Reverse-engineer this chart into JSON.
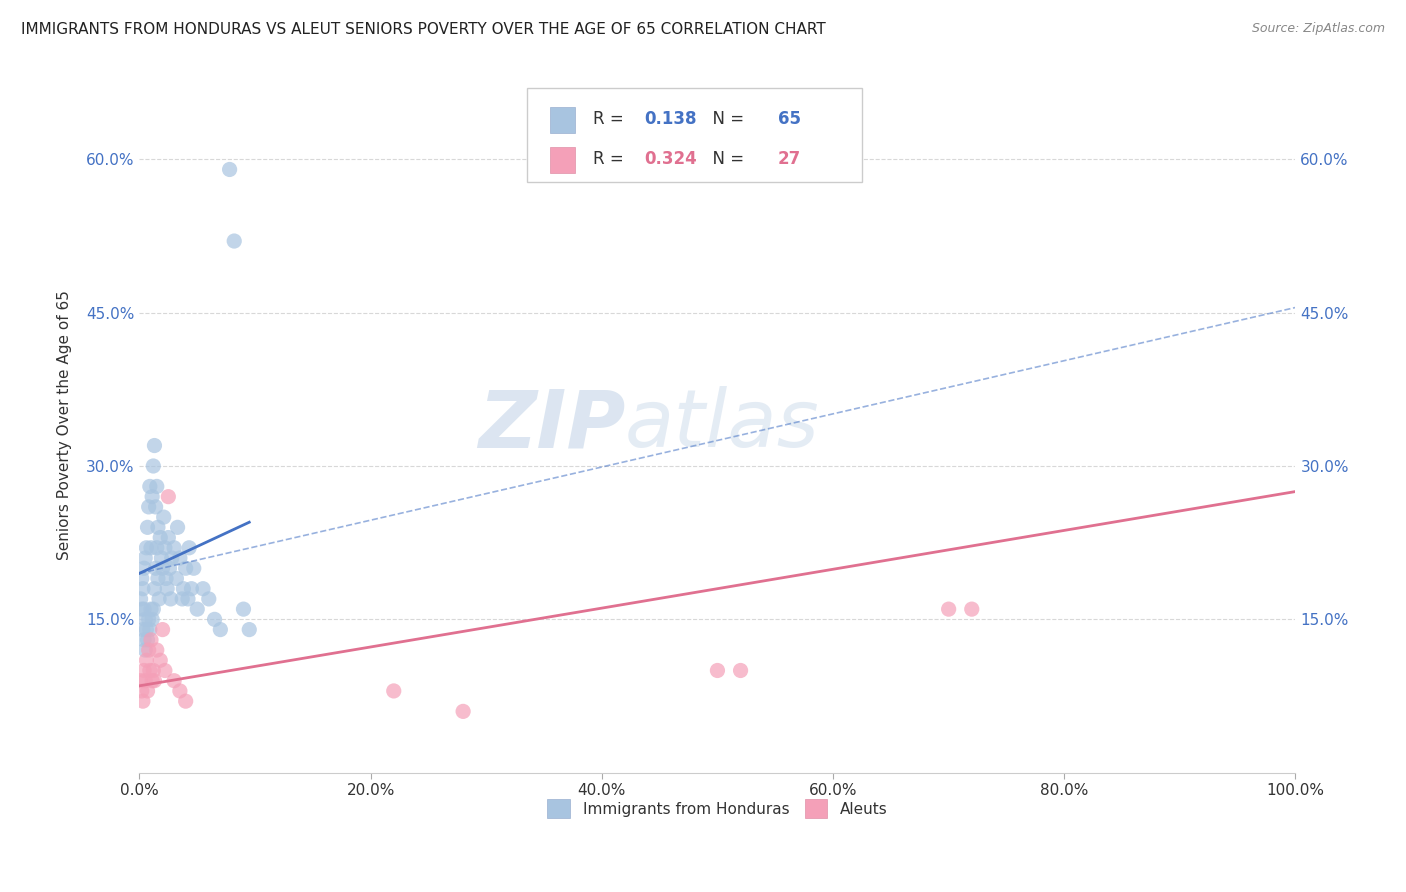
{
  "title": "IMMIGRANTS FROM HONDURAS VS ALEUT SENIORS POVERTY OVER THE AGE OF 65 CORRELATION CHART",
  "source": "Source: ZipAtlas.com",
  "ylabel": "Seniors Poverty Over the Age of 65",
  "xlim": [
    0,
    1.0
  ],
  "ylim": [
    0,
    0.68
  ],
  "xticks": [
    0.0,
    0.2,
    0.4,
    0.6,
    0.8,
    1.0
  ],
  "xticklabels": [
    "0.0%",
    "20.0%",
    "40.0%",
    "60.0%",
    "80.0%",
    "100.0%"
  ],
  "ytick_positions": [
    0.15,
    0.3,
    0.45,
    0.6
  ],
  "ytick_labels": [
    "15.0%",
    "30.0%",
    "45.0%",
    "60.0%"
  ],
  "legend_label1": "Immigrants from Honduras",
  "legend_label2": "Aleuts",
  "r1": "0.138",
  "n1": "65",
  "r2": "0.324",
  "n2": "27",
  "color1": "#a8c4e0",
  "color2": "#f4a0b8",
  "line_color1": "#4472c4",
  "line_color2": "#e07090",
  "watermark_zip": "ZIP",
  "watermark_atlas": "atlas",
  "scatter1_x": [
    0.001,
    0.002,
    0.002,
    0.003,
    0.003,
    0.004,
    0.004,
    0.004,
    0.005,
    0.005,
    0.005,
    0.006,
    0.006,
    0.007,
    0.007,
    0.008,
    0.008,
    0.009,
    0.009,
    0.01,
    0.01,
    0.011,
    0.011,
    0.012,
    0.012,
    0.013,
    0.013,
    0.014,
    0.014,
    0.015,
    0.015,
    0.016,
    0.016,
    0.017,
    0.018,
    0.019,
    0.02,
    0.021,
    0.022,
    0.023,
    0.024,
    0.025,
    0.026,
    0.027,
    0.028,
    0.03,
    0.032,
    0.033,
    0.035,
    0.037,
    0.038,
    0.04,
    0.042,
    0.043,
    0.045,
    0.047,
    0.05,
    0.055,
    0.06,
    0.065,
    0.07,
    0.078,
    0.082,
    0.09,
    0.095
  ],
  "scatter1_y": [
    0.17,
    0.16,
    0.19,
    0.14,
    0.18,
    0.13,
    0.16,
    0.2,
    0.12,
    0.15,
    0.21,
    0.14,
    0.22,
    0.13,
    0.24,
    0.15,
    0.26,
    0.14,
    0.28,
    0.16,
    0.22,
    0.15,
    0.27,
    0.16,
    0.3,
    0.18,
    0.32,
    0.2,
    0.26,
    0.22,
    0.28,
    0.19,
    0.24,
    0.17,
    0.23,
    0.21,
    0.2,
    0.25,
    0.22,
    0.19,
    0.18,
    0.23,
    0.2,
    0.17,
    0.21,
    0.22,
    0.19,
    0.24,
    0.21,
    0.17,
    0.18,
    0.2,
    0.17,
    0.22,
    0.18,
    0.2,
    0.16,
    0.18,
    0.17,
    0.15,
    0.14,
    0.59,
    0.52,
    0.16,
    0.14
  ],
  "scatter2_x": [
    0.001,
    0.002,
    0.003,
    0.004,
    0.005,
    0.006,
    0.007,
    0.008,
    0.009,
    0.01,
    0.011,
    0.012,
    0.013,
    0.015,
    0.018,
    0.02,
    0.022,
    0.025,
    0.03,
    0.035,
    0.04,
    0.22,
    0.28,
    0.5,
    0.52,
    0.7,
    0.72
  ],
  "scatter2_y": [
    0.09,
    0.08,
    0.07,
    0.1,
    0.09,
    0.11,
    0.08,
    0.12,
    0.1,
    0.13,
    0.09,
    0.1,
    0.09,
    0.12,
    0.11,
    0.14,
    0.1,
    0.27,
    0.09,
    0.08,
    0.07,
    0.08,
    0.06,
    0.1,
    0.1,
    0.16,
    0.16
  ],
  "trendline1_x": [
    0.0,
    0.095
  ],
  "trendline1_y": [
    0.195,
    0.245
  ],
  "trendline2_x": [
    0.0,
    1.0
  ],
  "trendline2_y": [
    0.085,
    0.275
  ],
  "dashed_line_x": [
    0.0,
    1.0
  ],
  "dashed_line_y": [
    0.195,
    0.455
  ],
  "background_color": "#ffffff",
  "grid_color": "#d8d8d8",
  "title_fontsize": 11,
  "axis_label_fontsize": 11,
  "tick_fontsize": 11
}
